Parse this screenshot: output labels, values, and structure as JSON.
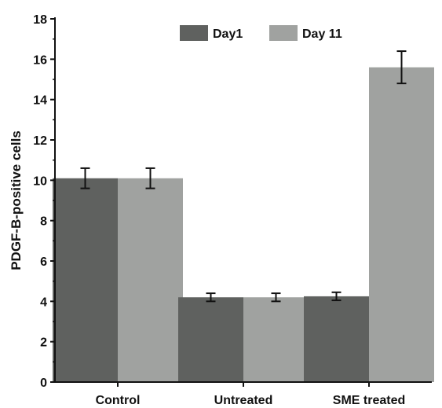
{
  "chart_data": {
    "type": "bar",
    "title": "",
    "xlabel": "",
    "ylabel": "PDGF-B-positive cells",
    "categories": [
      "Control",
      "Untreated",
      "SME treated"
    ],
    "series": [
      {
        "name": "Day1",
        "values": [
          10.1,
          4.2,
          4.25
        ],
        "errors": [
          0.5,
          0.2,
          0.2
        ],
        "color": "#5f615f"
      },
      {
        "name": "Day 11",
        "values": [
          10.1,
          4.2,
          15.6
        ],
        "errors": [
          0.5,
          0.2,
          0.8
        ],
        "color": "#a0a2a0"
      }
    ],
    "ylim": [
      0,
      18
    ],
    "yticks": [
      "0",
      "2",
      "4",
      "6",
      "8",
      "10",
      "12",
      "14",
      "16",
      "18"
    ],
    "legend_position": "top-center",
    "grid": false
  }
}
